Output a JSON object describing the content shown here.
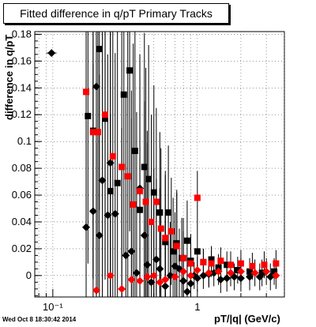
{
  "chart_data": {
    "type": "scatter",
    "title": "Fitted difference in q/pT  Primary Tracks",
    "xlabel": "pT/|q| (GeV/c)",
    "ylabel": "difference in q/pT",
    "x_scale": "log",
    "xlim": [
      0.075,
      4.0
    ],
    "ylim": [
      -0.016,
      0.182
    ],
    "x_tick_labels": [
      "10⁻¹",
      "1"
    ],
    "y_tick_labels": [
      "0",
      "0.02",
      "0.04",
      "0.06",
      "0.08",
      "0.1",
      "0.12",
      "0.14",
      "0.16",
      "0.18"
    ],
    "grid": true,
    "series": [
      {
        "marker": "diamond",
        "color": "#000000",
        "points": [
          [
            0.098,
            0.166,
            0.008,
            0.0
          ],
          [
            0.17,
            0.036,
            0.004,
            0.11
          ],
          [
            0.19,
            0.048,
            0.004,
            0.11
          ],
          [
            0.2,
            0.141,
            0.004,
            0.11
          ],
          [
            0.21,
            0.03,
            0.004,
            0.12
          ],
          [
            0.22,
            0.071,
            0.004,
            0.12
          ],
          [
            0.24,
            0.045,
            0.004,
            0.12
          ],
          [
            0.25,
            0.084,
            0.004,
            0.12
          ],
          [
            0.27,
            0.046,
            0.004,
            0.12
          ],
          [
            0.32,
            0.015,
            0.004,
            0.12
          ],
          [
            0.35,
            0.018,
            0.004,
            0.12
          ],
          [
            0.38,
            0.002,
            0.004,
            0.12
          ],
          [
            0.4,
            0.065,
            0.004,
            0.1
          ],
          [
            0.43,
            0.03,
            0.004,
            0.1
          ],
          [
            0.45,
            0.008,
            0.004,
            0.1
          ],
          [
            0.48,
            -0.005,
            0.004,
            0.08
          ],
          [
            0.52,
            0.012,
            0.004,
            0.06
          ],
          [
            0.55,
            0.005,
            0.004,
            0.06
          ],
          [
            0.6,
            -0.008,
            0.004,
            0.05
          ],
          [
            0.65,
            0.0,
            0.004,
            0.04
          ],
          [
            0.7,
            0.007,
            0.004,
            0.04
          ],
          [
            0.75,
            0.005,
            0.004,
            0.03
          ],
          [
            0.8,
            -0.004,
            0.004,
            0.02
          ],
          [
            0.85,
            -0.012,
            0.004,
            0.02
          ],
          [
            0.9,
            -0.006,
            0.004,
            0.02
          ],
          [
            0.95,
            0.0,
            0.004,
            0.01
          ],
          [
            1.0,
            -0.002,
            0.004,
            0.01
          ],
          [
            1.1,
            0.0,
            0.004,
            0.01
          ],
          [
            1.2,
            0.001,
            0.004,
            0.01
          ],
          [
            1.3,
            0.002,
            0.004,
            0.01
          ],
          [
            1.45,
            -0.003,
            0.004,
            0.01
          ],
          [
            1.6,
            -0.002,
            0.004,
            0.01
          ],
          [
            1.8,
            -0.001,
            0.004,
            0.01
          ],
          [
            2.0,
            -0.002,
            0.004,
            0.01
          ],
          [
            2.3,
            -0.001,
            0.004,
            0.01
          ],
          [
            2.7,
            -0.001,
            0.004,
            0.01
          ],
          [
            3.2,
            -0.001,
            0.004,
            0.01
          ]
        ]
      },
      {
        "marker": "square",
        "color": "#000000",
        "points": [
          [
            0.175,
            0.119,
            0.004,
            0.11
          ],
          [
            0.19,
            0.108,
            0.004,
            0.11
          ],
          [
            0.21,
            0.169,
            0.004,
            0.12
          ],
          [
            0.23,
            0.117,
            0.004,
            0.12
          ],
          [
            0.25,
            0.063,
            0.004,
            0.12
          ],
          [
            0.28,
            0.069,
            0.004,
            0.12
          ],
          [
            0.31,
            0.135,
            0.004,
            0.12
          ],
          [
            0.34,
            0.153,
            0.004,
            0.12
          ],
          [
            0.37,
            0.093,
            0.004,
            0.12
          ],
          [
            0.4,
            0.049,
            0.004,
            0.1
          ],
          [
            0.43,
            0.081,
            0.004,
            0.1
          ],
          [
            0.46,
            0.072,
            0.004,
            0.1
          ],
          [
            0.5,
            0.062,
            0.004,
            0.08
          ],
          [
            0.55,
            0.047,
            0.004,
            0.06
          ],
          [
            0.6,
            0.025,
            0.004,
            0.05
          ],
          [
            0.63,
            0.047,
            0.004,
            0.05
          ],
          [
            0.68,
            0.018,
            0.004,
            0.04
          ],
          [
            0.72,
            0.024,
            0.004,
            0.04
          ],
          [
            0.78,
            0.013,
            0.004,
            0.03
          ],
          [
            0.85,
            0.026,
            0.004,
            0.03
          ],
          [
            0.9,
            0.011,
            0.004,
            0.02
          ],
          [
            1.0,
            0.018,
            0.004,
            0.02
          ],
          [
            1.1,
            0.01,
            0.004,
            0.01
          ],
          [
            1.25,
            0.012,
            0.004,
            0.01
          ],
          [
            1.4,
            0.006,
            0.004,
            0.01
          ],
          [
            1.6,
            0.008,
            0.004,
            0.01
          ],
          [
            1.9,
            0.004,
            0.004,
            0.01
          ],
          [
            2.3,
            0.003,
            0.004,
            0.01
          ],
          [
            2.8,
            0.002,
            0.004,
            0.01
          ],
          [
            3.4,
            0.003,
            0.004,
            0.01
          ]
        ]
      },
      {
        "marker": "square",
        "color": "#ff0000",
        "points": [
          [
            0.17,
            0.137,
            0.004,
            0.11
          ],
          [
            0.19,
            0.107,
            0.004,
            0.11
          ],
          [
            0.205,
            0.107,
            0.004,
            0.12
          ],
          [
            0.23,
            0.12,
            0.004,
            0.12
          ],
          [
            0.26,
            0.089,
            0.004,
            0.12
          ],
          [
            0.3,
            0.081,
            0.004,
            0.12
          ],
          [
            0.33,
            0.074,
            0.004,
            0.12
          ],
          [
            0.36,
            0.053,
            0.004,
            0.12
          ],
          [
            0.4,
            0.063,
            0.004,
            0.1
          ],
          [
            0.44,
            0.055,
            0.004,
            0.1
          ],
          [
            0.48,
            0.04,
            0.004,
            0.08
          ],
          [
            0.52,
            0.055,
            0.004,
            0.07
          ],
          [
            0.56,
            0.035,
            0.004,
            0.06
          ],
          [
            0.6,
            0.028,
            0.004,
            0.05
          ],
          [
            0.66,
            0.033,
            0.004,
            0.04
          ],
          [
            0.72,
            0.022,
            0.004,
            0.04
          ],
          [
            0.8,
            0.013,
            0.004,
            0.03
          ],
          [
            0.9,
            0.009,
            0.004,
            0.02
          ],
          [
            1.0,
            0.058,
            0.004,
            0.02
          ],
          [
            1.1,
            0.01,
            0.004,
            0.01
          ],
          [
            1.25,
            0.009,
            0.004,
            0.01
          ],
          [
            1.45,
            0.011,
            0.004,
            0.01
          ],
          [
            1.7,
            0.008,
            0.004,
            0.01
          ],
          [
            2.0,
            0.009,
            0.004,
            0.01
          ],
          [
            2.4,
            0.007,
            0.004,
            0.01
          ],
          [
            2.9,
            0.008,
            0.004,
            0.01
          ],
          [
            3.5,
            0.009,
            0.004,
            0.01
          ]
        ]
      },
      {
        "marker": "diamond",
        "color": "#ff0000",
        "points": [
          [
            0.2,
            -0.011,
            0.004,
            0.11
          ],
          [
            0.25,
            0.0,
            0.004,
            0.12
          ],
          [
            0.3,
            -0.01,
            0.004,
            0.12
          ],
          [
            0.35,
            -0.003,
            0.004,
            0.12
          ],
          [
            0.4,
            -0.004,
            0.004,
            0.1
          ],
          [
            0.45,
            -0.001,
            0.004,
            0.1
          ],
          [
            0.5,
            0.0,
            0.004,
            0.08
          ],
          [
            0.55,
            -0.005,
            0.004,
            0.06
          ],
          [
            0.6,
            -0.003,
            0.004,
            0.05
          ],
          [
            0.7,
            -0.001,
            0.004,
            0.04
          ],
          [
            0.8,
            0.003,
            0.004,
            0.03
          ],
          [
            0.9,
            0.0,
            0.004,
            0.02
          ],
          [
            1.0,
            0.004,
            0.004,
            0.01
          ],
          [
            1.2,
            0.002,
            0.004,
            0.01
          ],
          [
            1.4,
            0.003,
            0.004,
            0.01
          ],
          [
            1.7,
            0.002,
            0.004,
            0.01
          ],
          [
            2.0,
            0.003,
            0.004,
            0.01
          ],
          [
            2.5,
            0.002,
            0.004,
            0.01
          ],
          [
            3.0,
            0.003,
            0.004,
            0.01
          ],
          [
            3.5,
            0.0,
            0.004,
            0.01
          ]
        ]
      }
    ]
  },
  "timestamp": "Wed Oct  8 18:30:42 2014"
}
